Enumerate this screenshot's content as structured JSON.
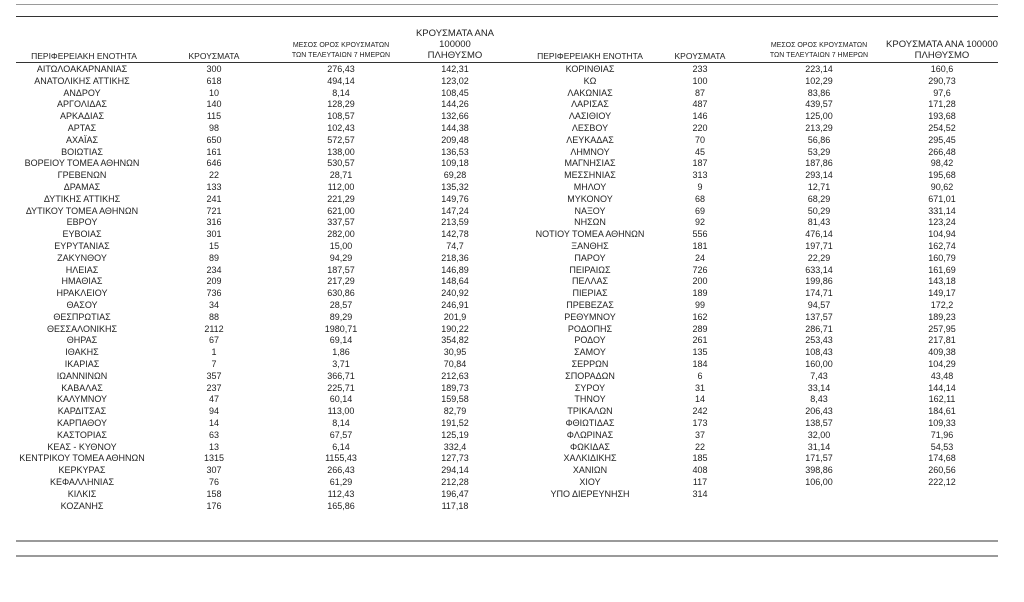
{
  "headers": {
    "region": "ΠΕΡΙΦΕΡΕΙΑΚΗ ΕΝΟΤΗΤΑ",
    "cases": "ΚΡΟΥΣΜΑΤΑ",
    "avg_line1": "ΜΕΣΟΣ ΟΡΟΣ ΚΡΟΥΣΜΑΤΩΝ",
    "avg_line2": "ΤΩΝ ΤΕΛΕΥΤΑΙΩΝ 7 ΗΜΕΡΩΝ",
    "per100k_line1": "ΚΡΟΥΣΜΑΤΑ ΑΝΑ 100000",
    "per100k_line2": "ΠΛΗΘΥΣΜΟ"
  },
  "left_rows": [
    [
      "ΑΙΤΩΛΟΑΚΑΡΝΑΝΙΑΣ",
      "300",
      "276,43",
      "142,31"
    ],
    [
      "ΑΝΑΤΟΛΙΚΗΣ ΑΤΤΙΚΗΣ",
      "618",
      "494,14",
      "123,02"
    ],
    [
      "ΑΝΔΡΟΥ",
      "10",
      "8,14",
      "108,45"
    ],
    [
      "ΑΡΓΟΛΙΔΑΣ",
      "140",
      "128,29",
      "144,26"
    ],
    [
      "ΑΡΚΑΔΙΑΣ",
      "115",
      "108,57",
      "132,66"
    ],
    [
      "ΑΡΤΑΣ",
      "98",
      "102,43",
      "144,38"
    ],
    [
      "ΑΧΑΪΑΣ",
      "650",
      "572,57",
      "209,48"
    ],
    [
      "ΒΟΙΩΤΙΑΣ",
      "161",
      "138,00",
      "136,53"
    ],
    [
      "ΒΟΡΕΙΟΥ ΤΟΜΕΑ ΑΘΗΝΩΝ",
      "646",
      "530,57",
      "109,18"
    ],
    [
      "ΓΡΕΒΕΝΩΝ",
      "22",
      "28,71",
      "69,28"
    ],
    [
      "ΔΡΑΜΑΣ",
      "133",
      "112,00",
      "135,32"
    ],
    [
      "ΔΥΤΙΚΗΣ ΑΤΤΙΚΗΣ",
      "241",
      "221,29",
      "149,76"
    ],
    [
      "ΔΥΤΙΚΟΥ ΤΟΜΕΑ ΑΘΗΝΩΝ",
      "721",
      "621,00",
      "147,24"
    ],
    [
      "ΕΒΡΟΥ",
      "316",
      "337,57",
      "213,59"
    ],
    [
      "ΕΥΒΟΙΑΣ",
      "301",
      "282,00",
      "142,78"
    ],
    [
      "ΕΥΡΥΤΑΝΙΑΣ",
      "15",
      "15,00",
      "74,7"
    ],
    [
      "ΖΑΚΥΝΘΟΥ",
      "89",
      "94,29",
      "218,36"
    ],
    [
      "ΗΛΕΙΑΣ",
      "234",
      "187,57",
      "146,89"
    ],
    [
      "ΗΜΑΘΙΑΣ",
      "209",
      "217,29",
      "148,64"
    ],
    [
      "ΗΡΑΚΛΕΙΟΥ",
      "736",
      "630,86",
      "240,92"
    ],
    [
      "ΘΑΣΟΥ",
      "34",
      "28,57",
      "246,91"
    ],
    [
      "ΘΕΣΠΡΩΤΙΑΣ",
      "88",
      "89,29",
      "201,9"
    ],
    [
      "ΘΕΣΣΑΛΟΝΙΚΗΣ",
      "2112",
      "1980,71",
      "190,22"
    ],
    [
      "ΘΗΡΑΣ",
      "67",
      "69,14",
      "354,82"
    ],
    [
      "ΙΘΑΚΗΣ",
      "1",
      "1,86",
      "30,95"
    ],
    [
      "ΙΚΑΡΙΑΣ",
      "7",
      "3,71",
      "70,84"
    ],
    [
      "ΙΩΑΝΝΙΝΩΝ",
      "357",
      "366,71",
      "212,63"
    ],
    [
      "ΚΑΒΑΛΑΣ",
      "237",
      "225,71",
      "189,73"
    ],
    [
      "ΚΑΛΥΜΝΟΥ",
      "47",
      "60,14",
      "159,58"
    ],
    [
      "ΚΑΡΔΙΤΣΑΣ",
      "94",
      "113,00",
      "82,79"
    ],
    [
      "ΚΑΡΠΑΘΟΥ",
      "14",
      "8,14",
      "191,52"
    ],
    [
      "ΚΑΣΤΟΡΙΑΣ",
      "63",
      "67,57",
      "125,19"
    ],
    [
      "ΚΕΑΣ - ΚΥΘΝΟΥ",
      "13",
      "6,14",
      "332,4"
    ],
    [
      "ΚΕΝΤΡΙΚΟΥ ΤΟΜΕΑ ΑΘΗΝΩΝ",
      "1315",
      "1155,43",
      "127,73"
    ],
    [
      "ΚΕΡΚΥΡΑΣ",
      "307",
      "266,43",
      "294,14"
    ],
    [
      "ΚΕΦΑΛΛΗΝΙΑΣ",
      "76",
      "61,29",
      "212,28"
    ],
    [
      "ΚΙΛΚΙΣ",
      "158",
      "112,43",
      "196,47"
    ],
    [
      "ΚΟΖΑΝΗΣ",
      "176",
      "165,86",
      "117,18"
    ]
  ],
  "right_rows": [
    [
      "ΚΟΡΙΝΘΙΑΣ",
      "233",
      "223,14",
      "160,6"
    ],
    [
      "ΚΩ",
      "100",
      "102,29",
      "290,73"
    ],
    [
      "ΛΑΚΩΝΙΑΣ",
      "87",
      "83,86",
      "97,6"
    ],
    [
      "ΛΑΡΙΣΑΣ",
      "487",
      "439,57",
      "171,28"
    ],
    [
      "ΛΑΣΙΘΙΟΥ",
      "146",
      "125,00",
      "193,68"
    ],
    [
      "ΛΕΣΒΟΥ",
      "220",
      "213,29",
      "254,52"
    ],
    [
      "ΛΕΥΚΑΔΑΣ",
      "70",
      "56,86",
      "295,45"
    ],
    [
      "ΛΗΜΝΟΥ",
      "45",
      "53,29",
      "266,48"
    ],
    [
      "ΜΑΓΝΗΣΙΑΣ",
      "187",
      "187,86",
      "98,42"
    ],
    [
      "ΜΕΣΣΗΝΙΑΣ",
      "313",
      "293,14",
      "195,68"
    ],
    [
      "ΜΗΛΟΥ",
      "9",
      "12,71",
      "90,62"
    ],
    [
      "ΜΥΚΟΝΟΥ",
      "68",
      "68,29",
      "671,01"
    ],
    [
      "ΝΑΞΟΥ",
      "69",
      "50,29",
      "331,14"
    ],
    [
      "ΝΗΣΩΝ",
      "92",
      "81,43",
      "123,24"
    ],
    [
      "ΝΟΤΙΟΥ ΤΟΜΕΑ ΑΘΗΝΩΝ",
      "556",
      "476,14",
      "104,94"
    ],
    [
      "ΞΑΝΘΗΣ",
      "181",
      "197,71",
      "162,74"
    ],
    [
      "ΠΑΡΟΥ",
      "24",
      "22,29",
      "160,79"
    ],
    [
      "ΠΕΙΡΑΙΩΣ",
      "726",
      "633,14",
      "161,69"
    ],
    [
      "ΠΕΛΛΑΣ",
      "200",
      "199,86",
      "143,18"
    ],
    [
      "ΠΙΕΡΙΑΣ",
      "189",
      "174,71",
      "149,17"
    ],
    [
      "ΠΡΕΒΕΖΑΣ",
      "99",
      "94,57",
      "172,2"
    ],
    [
      "ΡΕΘΥΜΝΟΥ",
      "162",
      "137,57",
      "189,23"
    ],
    [
      "ΡΟΔΟΠΗΣ",
      "289",
      "286,71",
      "257,95"
    ],
    [
      "ΡΟΔΟΥ",
      "261",
      "253,43",
      "217,81"
    ],
    [
      "ΣΑΜΟΥ",
      "135",
      "108,43",
      "409,38"
    ],
    [
      "ΣΕΡΡΩΝ",
      "184",
      "160,00",
      "104,29"
    ],
    [
      "ΣΠΟΡΑΔΩΝ",
      "6",
      "7,43",
      "43,48"
    ],
    [
      "ΣΥΡΟΥ",
      "31",
      "33,14",
      "144,14"
    ],
    [
      "ΤΗΝΟΥ",
      "14",
      "8,43",
      "162,11"
    ],
    [
      "ΤΡΙΚΑΛΩΝ",
      "242",
      "206,43",
      "184,61"
    ],
    [
      "ΦΘΙΩΤΙΔΑΣ",
      "173",
      "138,57",
      "109,33"
    ],
    [
      "ΦΛΩΡΙΝΑΣ",
      "37",
      "32,00",
      "71,96"
    ],
    [
      "ΦΩΚΙΔΑΣ",
      "22",
      "31,14",
      "54,53"
    ],
    [
      "ΧΑΛΚΙΔΙΚΗΣ",
      "185",
      "171,57",
      "174,68"
    ],
    [
      "ΧΑΝΙΩΝ",
      "408",
      "398,86",
      "260,56"
    ],
    [
      "ΧΙΟΥ",
      "117",
      "106,00",
      "222,12"
    ],
    [
      "ΥΠΟ ΔΙΕΡΕΥΝΗΣΗ",
      "314",
      "",
      ""
    ]
  ]
}
